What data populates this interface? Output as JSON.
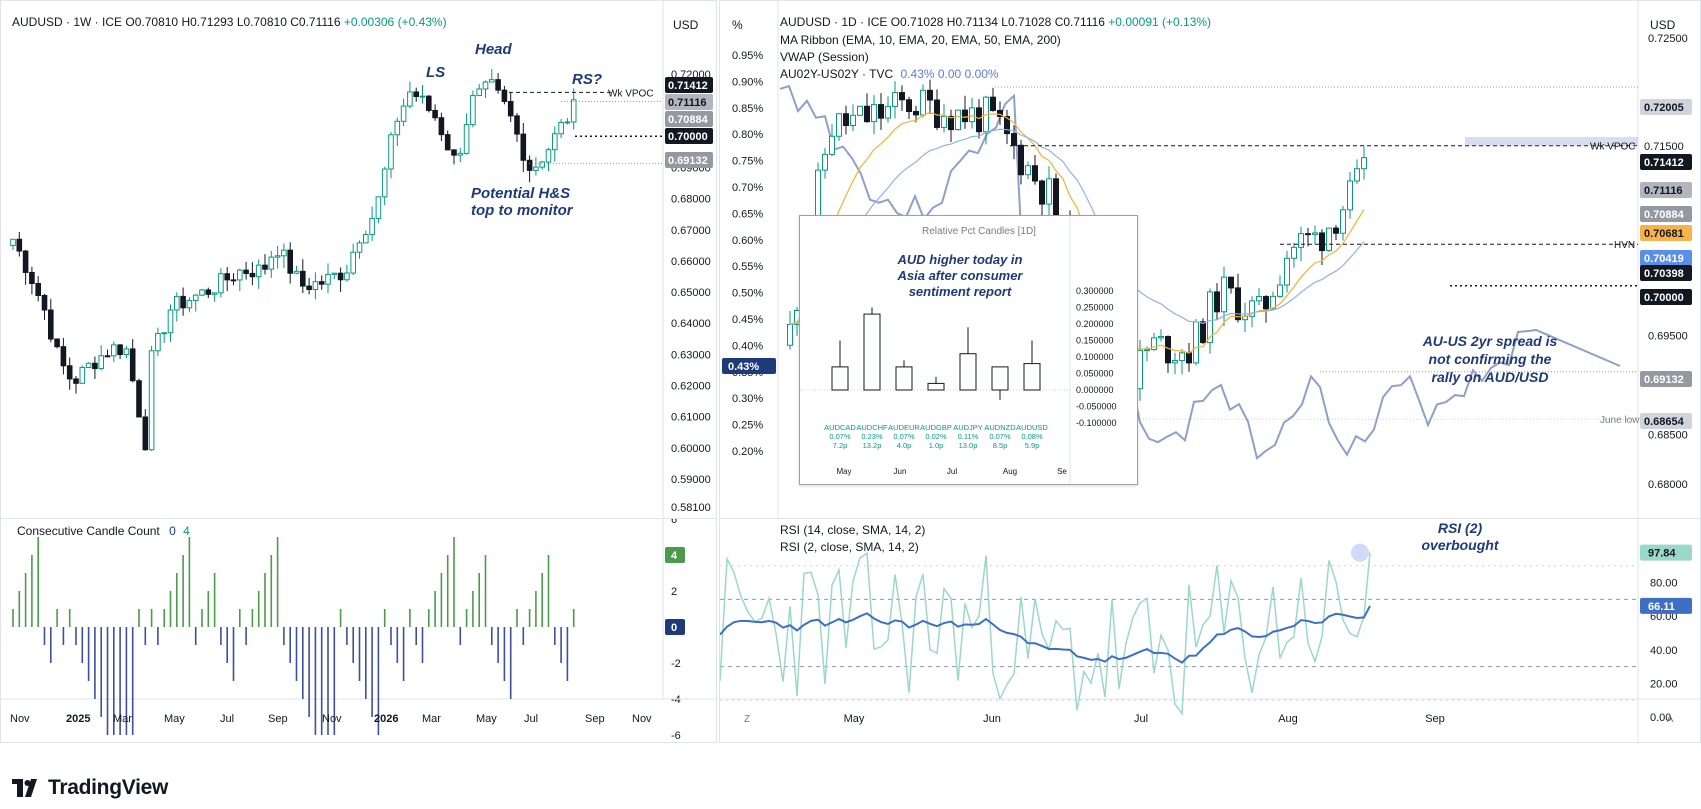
{
  "left_chart": {
    "header": {
      "symbol": "AUDUSD",
      "interval": "1W",
      "exchange": "ICE",
      "open": "O0.70810",
      "high": "H0.71293",
      "low": "L0.70810",
      "close": "C0.71116",
      "change": "+0.00306 (+0.43%)"
    },
    "currency": "USD",
    "yticks": [
      "0.72000",
      "0.71000",
      "0.70000",
      "0.69000",
      "0.68000",
      "0.67000",
      "0.66000",
      "0.65000",
      "0.64000",
      "0.63000",
      "0.62000",
      "0.61000",
      "0.60000",
      "0.59000",
      "0.58100"
    ],
    "xticks": [
      "Nov",
      "2025",
      "Mar",
      "May",
      "Jul",
      "Sep",
      "Nov",
      "2026",
      "Mar",
      "May",
      "Jul",
      "Sep",
      "Nov"
    ],
    "price_labels": {
      "wk_vpoc": "0.71412",
      "last": "0.71116",
      "l2": "0.70884",
      "l3": "0.70000",
      "l4": "0.69132"
    },
    "annotations": {
      "ls": "LS",
      "head": "Head",
      "rs": "RS?",
      "wk_vpoc": "Wk VPOC",
      "hs1": "Potential H&S",
      "hs2": "top to monitor"
    }
  },
  "left_indicator": {
    "title": "Consecutive Candle Count",
    "v1": "0",
    "v2": "4",
    "yticks": [
      "6",
      "4",
      "2",
      "0",
      "-2",
      "-4",
      "-6"
    ],
    "badge_top": "4",
    "badge_zero": "0"
  },
  "right_chart": {
    "header": {
      "symbol": "AUDUSD",
      "interval": "1D",
      "exchange": "ICE",
      "open": "O0.71028",
      "high": "H0.71134",
      "low": "L0.71028",
      "close": "C0.71116",
      "change": "+0.00091 (+0.13%)"
    },
    "legend2": "MA Ribbon (EMA, 10, EMA, 20, EMA, 50, EMA, 200)",
    "legend3": "VWAP (Session)",
    "legend4_name": "AU02Y-US02Y · TVC",
    "legend4_vals": "0.43%  0.00  0.00%",
    "currency": "USD",
    "pct_label": "%",
    "yticks_right": [
      "0.72500",
      "0.72005",
      "0.71500",
      "0.71412",
      "0.71116",
      "0.70884",
      "0.70681",
      "0.70419",
      "0.70398",
      "0.70000",
      "0.69500",
      "0.69132",
      "0.68654",
      "0.68500",
      "0.68000"
    ],
    "yticks_left": [
      "0.95%",
      "0.90%",
      "0.85%",
      "0.80%",
      "0.75%",
      "0.70%",
      "0.65%",
      "0.60%",
      "0.55%",
      "0.50%",
      "0.45%",
      "0.40%",
      "0.35%",
      "0.30%",
      "0.25%",
      "0.20%"
    ],
    "left_badge": "0.43%",
    "xticks": [
      "May",
      "Jun",
      "Jul",
      "Aug",
      "Sep"
    ],
    "price_labels": {
      "wk_vpoc": "0.71412",
      "last": "0.71116",
      "l_72005": "0.72005",
      "l_71500": "0.71500",
      "l_70884": "0.70884",
      "l_70681": "0.70681",
      "l_70419": "0.70419",
      "l_70398": "0.70398",
      "l_70000": "0.70000",
      "l_69132": "0.69132",
      "l_68654": "0.68654"
    },
    "annotations": {
      "wk_vpoc": "Wk VPOC",
      "hvn": "HVN",
      "june_low": "June low",
      "spread1": "AU-US 2yr spread is",
      "spread2": "not confirming the",
      "spread3": "rally on AUD/USD"
    },
    "axis_buttons": {
      "left": "Z",
      "right": "A"
    }
  },
  "inset": {
    "title": "Relative Pct Candles [1D]",
    "note1": "AUD higher today in",
    "note2": "Asia after consumer",
    "note3": "sentiment report",
    "yticks": [
      "0.300000",
      "0.250000",
      "0.200000",
      "0.150000",
      "0.100000",
      "0.050000",
      "0.000000",
      "-0.050000",
      "-0.100000"
    ],
    "xticks": [
      "May",
      "Jun",
      "Jul",
      "Aug",
      "Se"
    ]
  },
  "rsi": {
    "legend1": "RSI (14, close, SMA, 14, 2)",
    "legend2": "RSI (2, close, SMA, 14, 2)",
    "yticks": [
      "80.00",
      "60.00",
      "40.00",
      "20.00",
      "0.00"
    ],
    "badge_rsi2": "97.84",
    "badge_rsi14": "66.11",
    "note1": "RSI (2)",
    "note2": "overbought"
  },
  "brand": {
    "name": "TradingView"
  },
  "colors": {
    "up": "#089981",
    "down": "#131722",
    "navy": "#1f3a78",
    "green_bar": "#4c9a4c",
    "blue_bar": "#3d4f9e",
    "spread": "#8da0cb",
    "rsi14": "#3f6fc4",
    "rsi2": "#9ad8c8"
  },
  "chart_data": [
    {
      "type": "candlestick",
      "title": "AUDUSD · 1W · ICE",
      "x": [
        "Nov",
        "2025",
        "Mar",
        "May",
        "Jul",
        "Sep",
        "Nov",
        "2026",
        "Mar",
        "May",
        "Jul",
        "Sep",
        "Nov"
      ],
      "ylim": [
        0.581,
        0.72
      ],
      "annotations": [
        "LS",
        "Head",
        "RS?",
        "Wk VPOC",
        "Potential H&S top to monitor"
      ],
      "levels": [
        0.71412,
        0.71116,
        0.70884,
        0.7,
        0.69132
      ],
      "last_close": 0.71116
    },
    {
      "type": "bar",
      "title": "Consecutive Candle Count",
      "ylim": [
        -6,
        6
      ],
      "last_value": 4
    },
    {
      "type": "candlestick",
      "title": "AUDUSD · 1D · ICE",
      "x": [
        "May",
        "Jun",
        "Jul",
        "Aug",
        "Sep"
      ],
      "ylim": [
        0.68,
        0.726
      ],
      "levels": [
        0.72005,
        0.715,
        0.71412,
        0.71116,
        0.70884,
        0.70681,
        0.70419,
        0.70398,
        0.7,
        0.69132,
        0.68654
      ],
      "series": [
        {
          "name": "AU02Y-US02Y · TVC",
          "last": "0.43%"
        },
        {
          "name": "MA Ribbon (EMA, 10, EMA, 20, EMA, 50, EMA, 200)"
        }
      ]
    },
    {
      "type": "candlestick",
      "title": "Relative Pct Candles [1D]",
      "categories": [
        "AUDCAD",
        "AUDCHF",
        "AUDEUR",
        "AUDGBP",
        "AUDJPY",
        "AUDNZD",
        "AUDUSD"
      ],
      "pct": [
        "0.07%",
        "0.23%",
        "0.07%",
        "0.02%",
        "0.11%",
        "0.07%",
        "0.08%"
      ],
      "pips": [
        "7.2p",
        "13.2p",
        "4.0p",
        "1.0p",
        "13.0p",
        "8.5p",
        "5.9p"
      ],
      "values": [
        0.07,
        0.23,
        0.07,
        0.02,
        0.11,
        0.07,
        0.08
      ],
      "highs": [
        0.15,
        0.25,
        0.09,
        0.04,
        0.19,
        0.07,
        0.15
      ],
      "lows": [
        0.0,
        0.0,
        0.0,
        0.0,
        0.0,
        -0.03,
        0.0
      ],
      "ylim": [
        -0.1,
        0.3
      ]
    },
    {
      "type": "line",
      "title": "RSI",
      "series": [
        {
          "name": "RSI (14, close, SMA, 14, 2)",
          "last": 66.11
        },
        {
          "name": "RSI (2, close, SMA, 14, 2)",
          "last": 97.84
        }
      ],
      "ylim": [
        0,
        100
      ]
    }
  ]
}
